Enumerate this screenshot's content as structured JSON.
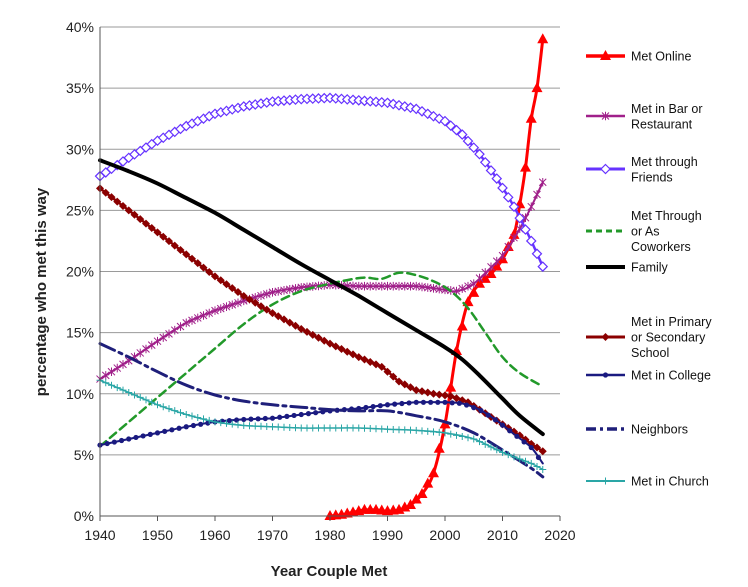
{
  "chart_data": {
    "type": "line",
    "xlabel": "Year Couple Met",
    "ylabel": "percentage who met this way",
    "xlim": [
      1940,
      2020
    ],
    "ylim": [
      0,
      40
    ],
    "x_ticks": [
      "1940",
      "1950",
      "1960",
      "1970",
      "1980",
      "1990",
      "2000",
      "2010",
      "2020"
    ],
    "y_ticks": [
      "0%",
      "5%",
      "10%",
      "15%",
      "20%",
      "25%",
      "30%",
      "35%",
      "40%"
    ],
    "grid": "horizontal",
    "legend_position": "right",
    "series": [
      {
        "name": "Met Online",
        "color": "#ff0000",
        "marker": "triangle",
        "line_width": 3,
        "points": [
          [
            1980,
            0
          ],
          [
            1982,
            0.1
          ],
          [
            1984,
            0.3
          ],
          [
            1986,
            0.5
          ],
          [
            1988,
            0.5
          ],
          [
            1990,
            0.4
          ],
          [
            1992,
            0.5
          ],
          [
            1994,
            0.9
          ],
          [
            1996,
            1.8
          ],
          [
            1998,
            3.5
          ],
          [
            2000,
            7.5
          ],
          [
            2002,
            13.5
          ],
          [
            2004,
            17.5
          ],
          [
            2006,
            19.0
          ],
          [
            2008,
            19.8
          ],
          [
            2010,
            21.0
          ],
          [
            2012,
            23.0
          ],
          [
            2013,
            25.5
          ],
          [
            2014,
            28.5
          ],
          [
            2015,
            32.5
          ],
          [
            2016,
            35.0
          ],
          [
            2017,
            39.0
          ]
        ]
      },
      {
        "name": "Met in Bar or Restaurant",
        "color": "#a0208a",
        "marker": "asterisk",
        "line_width": 2,
        "points": [
          [
            1940,
            11.2
          ],
          [
            1945,
            12.7
          ],
          [
            1950,
            14.3
          ],
          [
            1955,
            15.8
          ],
          [
            1960,
            16.8
          ],
          [
            1965,
            17.6
          ],
          [
            1970,
            18.3
          ],
          [
            1975,
            18.7
          ],
          [
            1980,
            18.9
          ],
          [
            1985,
            18.8
          ],
          [
            1990,
            18.8
          ],
          [
            1995,
            18.8
          ],
          [
            2000,
            18.5
          ],
          [
            2002,
            18.4
          ],
          [
            2005,
            19.0
          ],
          [
            2010,
            21.3
          ],
          [
            2013,
            23.5
          ],
          [
            2015,
            25.3
          ],
          [
            2017,
            27.3
          ]
        ]
      },
      {
        "name": "Met through Friends",
        "color": "#6633ff",
        "marker": "diamond-open",
        "line_width": 2.5,
        "points": [
          [
            1940,
            27.8
          ],
          [
            1945,
            29.3
          ],
          [
            1950,
            30.7
          ],
          [
            1955,
            31.9
          ],
          [
            1960,
            32.9
          ],
          [
            1965,
            33.5
          ],
          [
            1970,
            33.9
          ],
          [
            1975,
            34.1
          ],
          [
            1980,
            34.2
          ],
          [
            1985,
            34.0
          ],
          [
            1990,
            33.8
          ],
          [
            1995,
            33.3
          ],
          [
            2000,
            32.3
          ],
          [
            2003,
            31.2
          ],
          [
            2006,
            29.6
          ],
          [
            2009,
            27.6
          ],
          [
            2012,
            25.3
          ],
          [
            2015,
            22.5
          ],
          [
            2017,
            20.4
          ]
        ]
      },
      {
        "name": "Met Through or As Coworkers",
        "color": "#22992a",
        "marker": "none",
        "line_width": 2.5,
        "dash": "8,5",
        "points": [
          [
            1940,
            5.7
          ],
          [
            1945,
            7.7
          ],
          [
            1950,
            9.7
          ],
          [
            1955,
            11.7
          ],
          [
            1960,
            13.7
          ],
          [
            1965,
            15.7
          ],
          [
            1970,
            17.3
          ],
          [
            1975,
            18.4
          ],
          [
            1980,
            19.0
          ],
          [
            1983,
            19.3
          ],
          [
            1986,
            19.5
          ],
          [
            1989,
            19.4
          ],
          [
            1992,
            19.9
          ],
          [
            1995,
            19.7
          ],
          [
            1998,
            19.2
          ],
          [
            2001,
            18.4
          ],
          [
            2004,
            17.0
          ],
          [
            2007,
            15.0
          ],
          [
            2010,
            13.0
          ],
          [
            2013,
            11.7
          ],
          [
            2017,
            10.6
          ]
        ]
      },
      {
        "name": "Family",
        "color": "#000000",
        "marker": "none",
        "line_width": 4,
        "points": [
          [
            1940,
            29.1
          ],
          [
            1945,
            28.2
          ],
          [
            1950,
            27.2
          ],
          [
            1955,
            26.0
          ],
          [
            1960,
            24.8
          ],
          [
            1965,
            23.4
          ],
          [
            1970,
            22.0
          ],
          [
            1975,
            20.6
          ],
          [
            1980,
            19.3
          ],
          [
            1985,
            18.0
          ],
          [
            1990,
            16.6
          ],
          [
            1995,
            15.2
          ],
          [
            2000,
            13.8
          ],
          [
            2003,
            12.8
          ],
          [
            2006,
            11.5
          ],
          [
            2010,
            9.6
          ],
          [
            2013,
            8.2
          ],
          [
            2017,
            6.7
          ]
        ]
      },
      {
        "name": "Met in Primary or Secondary School",
        "color": "#8b0000",
        "marker": "diamond",
        "line_width": 2.5,
        "points": [
          [
            1940,
            26.8
          ],
          [
            1945,
            25.0
          ],
          [
            1950,
            23.2
          ],
          [
            1955,
            21.4
          ],
          [
            1960,
            19.6
          ],
          [
            1965,
            18.0
          ],
          [
            1970,
            16.6
          ],
          [
            1975,
            15.3
          ],
          [
            1980,
            14.1
          ],
          [
            1985,
            13.0
          ],
          [
            1989,
            12.2
          ],
          [
            1992,
            11.0
          ],
          [
            1995,
            10.3
          ],
          [
            1998,
            10.0
          ],
          [
            2001,
            9.8
          ],
          [
            2004,
            9.3
          ],
          [
            2007,
            8.4
          ],
          [
            2010,
            7.5
          ],
          [
            2013,
            6.6
          ],
          [
            2015,
            5.9
          ],
          [
            2017,
            5.3
          ]
        ]
      },
      {
        "name": "Met in College",
        "color": "#1a1a80",
        "marker": "dot",
        "line_width": 2,
        "points": [
          [
            1940,
            5.8
          ],
          [
            1945,
            6.3
          ],
          [
            1950,
            6.8
          ],
          [
            1955,
            7.3
          ],
          [
            1960,
            7.7
          ],
          [
            1965,
            7.9
          ],
          [
            1970,
            8.0
          ],
          [
            1975,
            8.3
          ],
          [
            1980,
            8.6
          ],
          [
            1985,
            8.8
          ],
          [
            1990,
            9.1
          ],
          [
            1995,
            9.3
          ],
          [
            2000,
            9.3
          ],
          [
            2003,
            9.2
          ],
          [
            2006,
            8.7
          ],
          [
            2009,
            7.8
          ],
          [
            2012,
            6.7
          ],
          [
            2015,
            5.6
          ],
          [
            2017,
            4.3
          ]
        ]
      },
      {
        "name": "Neighbors",
        "color": "#1f1f7a",
        "marker": "none",
        "line_width": 3,
        "dash": "16,5,3,5",
        "points": [
          [
            1940,
            14.1
          ],
          [
            1945,
            13.0
          ],
          [
            1950,
            11.8
          ],
          [
            1955,
            10.7
          ],
          [
            1960,
            9.9
          ],
          [
            1965,
            9.4
          ],
          [
            1970,
            9.1
          ],
          [
            1975,
            8.9
          ],
          [
            1980,
            8.7
          ],
          [
            1985,
            8.6
          ],
          [
            1990,
            8.6
          ],
          [
            1995,
            8.2
          ],
          [
            2000,
            7.7
          ],
          [
            2005,
            6.8
          ],
          [
            2010,
            5.4
          ],
          [
            2015,
            3.9
          ],
          [
            2017,
            3.2
          ]
        ]
      },
      {
        "name": "Met in Church",
        "color": "#2aa6a6",
        "marker": "plus",
        "line_width": 1.5,
        "points": [
          [
            1940,
            11.1
          ],
          [
            1945,
            10.1
          ],
          [
            1950,
            9.1
          ],
          [
            1955,
            8.3
          ],
          [
            1960,
            7.7
          ],
          [
            1965,
            7.4
          ],
          [
            1970,
            7.3
          ],
          [
            1975,
            7.2
          ],
          [
            1980,
            7.2
          ],
          [
            1985,
            7.2
          ],
          [
            1990,
            7.1
          ],
          [
            1995,
            7.0
          ],
          [
            2000,
            6.8
          ],
          [
            2005,
            6.3
          ],
          [
            2010,
            5.2
          ],
          [
            2015,
            4.3
          ],
          [
            2017,
            3.8
          ]
        ]
      }
    ]
  },
  "legend": [
    {
      "lines": [
        "Met Online"
      ]
    },
    {
      "lines": [
        "Met in Bar or",
        "Restaurant"
      ]
    },
    {
      "lines": [
        "Met through",
        "Friends"
      ]
    },
    {
      "lines": [
        "Met Through",
        "or As",
        "Coworkers"
      ]
    },
    {
      "lines": [
        "Family"
      ]
    },
    {
      "lines": [
        "Met in Primary",
        "or Secondary",
        "School"
      ]
    },
    {
      "lines": [
        "Met in College"
      ]
    },
    {
      "lines": [
        "Neighbors"
      ]
    },
    {
      "lines": [
        "Met in Church"
      ]
    }
  ]
}
